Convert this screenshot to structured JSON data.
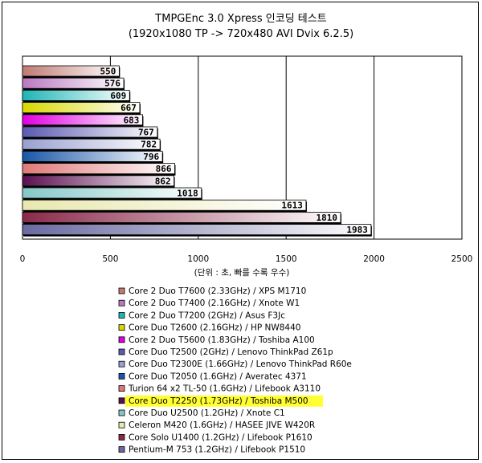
{
  "chart_data": {
    "type": "bar",
    "orientation": "horizontal",
    "title": "TMPGEnc 3.0 Xpress 인코딩 테스트",
    "subtitle": "(1920x1080 TP -> 720x480 AVI Dvix 6.2.5)",
    "xlabel": "(단위 : 초, 빠를 수록 우수)",
    "xlim": [
      0,
      2500
    ],
    "xticks": [
      0,
      500,
      1000,
      1500,
      2000,
      2500
    ],
    "grid": "vertical",
    "legend_position": "bottom",
    "highlighted": "Core Duo T2250 (1.73GHz) / Toshiba M500",
    "highlight_color": "#ffff33",
    "series": [
      {
        "name": "Core 2 Duo T7600 (2.33GHz) / XPS M1710",
        "value": 550,
        "color": "#c07a74"
      },
      {
        "name": "Core 2 Duo T7400 (2.16GHz) / Xnote W1",
        "value": 576,
        "color": "#b879c0"
      },
      {
        "name": "Core 2 Duo T7200 (2GHz) / Asus F3Jc",
        "value": 609,
        "color": "#1fb5b5"
      },
      {
        "name": "Core Duo T2600 (2.16GHz) / HP NW8440",
        "value": 667,
        "color": "#d8d800"
      },
      {
        "name": "Core 2 Duo T5600 (1.83GHz) / Toshiba A100",
        "value": 683,
        "color": "#e000e0"
      },
      {
        "name": "Core Duo T2500 (2GHz) / Lenovo ThinkPad Z61p",
        "value": 767,
        "color": "#5a5ab0"
      },
      {
        "name": "Core Duo T2300E (1.66GHz) / Lenovo ThinkPad R60e",
        "value": 782,
        "color": "#9aa0d0"
      },
      {
        "name": "Core Duo T2050 (1.6GHz) / Averatec 4371",
        "value": 796,
        "color": "#1a56a8"
      },
      {
        "name": "Turion 64 x2 TL-50 (1.6GHz) / Lifebook A3110",
        "value": 866,
        "color": "#e07878"
      },
      {
        "name": "Core Duo T2250 (1.73GHz) / Toshiba M500",
        "value": 862,
        "color": "#5a1050"
      },
      {
        "name": "Core Duo U2500 (1.2GHz) / Xnote C1",
        "value": 1018,
        "color": "#86c8c8"
      },
      {
        "name": "Celeron M420 (1.6GHz) / HASEE JIVE W420R",
        "value": 1613,
        "color": "#e8e8b0"
      },
      {
        "name": "Core Solo U1400 (1.2GHz) / Lifebook P1610",
        "value": 1810,
        "color": "#8a2a4a"
      },
      {
        "name": "Pentium-M 753 (1.2GHz) / Lifebook P1510",
        "value": 1983,
        "color": "#6a6aa0"
      }
    ]
  }
}
